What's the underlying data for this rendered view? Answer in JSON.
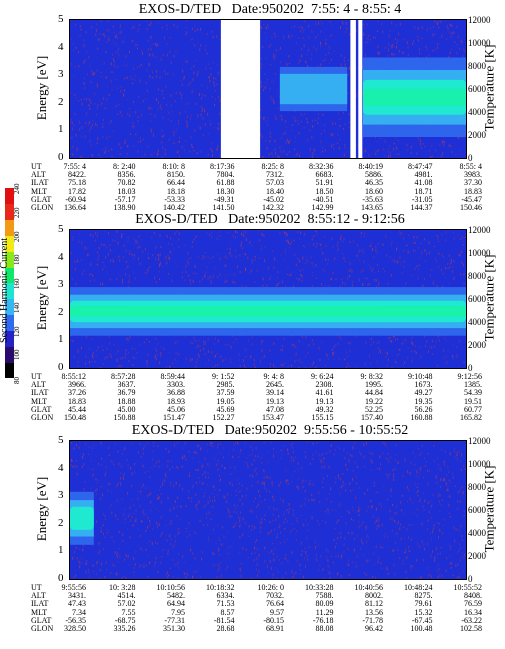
{
  "colors": {
    "background": "#1f2fd6",
    "noise": "#9a3a6e",
    "band_outer": "#2f6cf0",
    "band_mid": "#37b2f2",
    "band_core": "#1fe9d0",
    "band_peak": "#18f2a8",
    "gap": "#ffffff"
  },
  "colorbar": {
    "label": "Second Harmonic Current",
    "ticks": [
      "80",
      "100",
      "120",
      "140",
      "160",
      "180",
      "200",
      "220",
      "240"
    ],
    "colors": [
      "#000000",
      "#2a0a6a",
      "#2422c8",
      "#2f6cf0",
      "#36b6f2",
      "#1fe4cf",
      "#11e86a",
      "#8ae81c",
      "#f2ea14",
      "#f29a14",
      "#e82818",
      "#e01010"
    ]
  },
  "chart_data": [
    {
      "type": "heatmap",
      "title": "EXOS-D/TED   Date:950202  7:55: 4 - 8:55: 4",
      "ylabel": "Energy [eV]",
      "y2label": "Temperature [K]",
      "ylim": [
        0,
        5
      ],
      "y2lim": [
        0,
        12000
      ],
      "yticks": [
        "0",
        "1",
        "2",
        "3",
        "4",
        "5"
      ],
      "y2ticks": [
        "0",
        "2000",
        "4000",
        "6000",
        "8000",
        "10000",
        "12000"
      ],
      "time_range": [
        "7:55:4",
        "8:55:4"
      ],
      "data_gaps": [
        [
          0.381,
          0.48
        ],
        [
          0.708,
          0.722
        ],
        [
          0.728,
          0.738
        ]
      ],
      "features": [
        {
          "name": "band",
          "t_start": 0.53,
          "t_end": 0.7,
          "energy_center": 2.5,
          "energy_width": 1.0,
          "intensity": 0.45
        },
        {
          "name": "band",
          "t_start": 0.74,
          "t_end": 1.0,
          "energy_center": 2.2,
          "energy_width": 1.8,
          "intensity": 0.85
        }
      ],
      "ephemeris": {
        "labels": [
          "UT",
          "ALT",
          "ILAT",
          "MLT",
          "GLAT",
          "GLON"
        ],
        "columns": [
          [
            "7:55: 4",
            "8422.",
            "75.18",
            "17.82",
            "-60.94",
            "136.64"
          ],
          [
            "8: 2:40",
            "8356.",
            "70.82",
            "18.03",
            "-57.17",
            "138.90"
          ],
          [
            "8:10: 8",
            "8150.",
            "66.44",
            "18.18",
            "-53.33",
            "140.42"
          ],
          [
            "8:17:36",
            "7804.",
            "61.88",
            "18.30",
            "-49.31",
            "141.50"
          ],
          [
            "8:25: 8",
            "7312.",
            "57.03",
            "18.40",
            "-45.02",
            "142.32"
          ],
          [
            "8:32:36",
            "6683.",
            "51.91",
            "18.50",
            "-40.51",
            "142.99"
          ],
          [
            "8:40:19",
            "5886.",
            "46.35",
            "18.60",
            "-35.63",
            "143.65"
          ],
          [
            "8:47:47",
            "4981.",
            "41.08",
            "18.71",
            "-31.05",
            "144.37"
          ],
          [
            "8:55: 4",
            "3983.",
            "37.30",
            "18.83",
            "-45.47",
            "150.46"
          ]
        ]
      }
    },
    {
      "type": "heatmap",
      "title": "EXOS-D/TED   Date:950202  8:55:12 - 9:12:56",
      "ylabel": "Energy [eV]",
      "y2label": "Temperature [K]",
      "ylim": [
        0,
        5
      ],
      "y2lim": [
        0,
        12000
      ],
      "yticks": [
        "0",
        "1",
        "2",
        "3",
        "4",
        "5"
      ],
      "y2ticks": [
        "0",
        "2000",
        "4000",
        "6000",
        "8000",
        "10000",
        "12000"
      ],
      "time_range": [
        "8:55:12",
        "9:12:56"
      ],
      "data_gaps": [],
      "features": [
        {
          "name": "band",
          "t_start": 0.0,
          "t_end": 1.0,
          "energy_center": 2.05,
          "energy_width": 1.1,
          "intensity": 0.95
        }
      ],
      "ephemeris": {
        "labels": [
          "UT",
          "ALT",
          "ILAT",
          "MLT",
          "GLAT",
          "GLON"
        ],
        "columns": [
          [
            "8:55:12",
            "3966.",
            "37.26",
            "18.83",
            "45.44",
            "150.48"
          ],
          [
            "8:57:28",
            "3637.",
            "36.79",
            "18.88",
            "45.00",
            "150.88"
          ],
          [
            "8:59:44",
            "3303.",
            "36.88",
            "18.93",
            "45.06",
            "151.47"
          ],
          [
            "9: 1:52",
            "2985.",
            "37.59",
            "19.05",
            "45.69",
            "152.27"
          ],
          [
            "9: 4: 8",
            "2645.",
            "39.14",
            "19.13",
            "47.08",
            "153.47"
          ],
          [
            "9: 6:24",
            "2308.",
            "41.61",
            "19.13",
            "49.32",
            "155.15"
          ],
          [
            "9: 8:32",
            "1995.",
            "44.84",
            "19.22",
            "52.25",
            "157.40"
          ],
          [
            "9:10:48",
            "1673.",
            "49.27",
            "19.35",
            "56.26",
            "160.88"
          ],
          [
            "9:12:56",
            "1385.",
            "54.39",
            "19.51",
            "60.77",
            "165.82"
          ]
        ]
      }
    },
    {
      "type": "heatmap",
      "title": "EXOS-D/TED   Date:950202  9:55:56 - 10:55:52",
      "ylabel": "Energy [eV]",
      "y2label": "Temperature [K]",
      "ylim": [
        0,
        5
      ],
      "y2lim": [
        0,
        12000
      ],
      "yticks": [
        "0",
        "1",
        "2",
        "3",
        "4",
        "5"
      ],
      "y2ticks": [
        "0",
        "2000",
        "4000",
        "6000",
        "8000",
        "10000",
        "12000"
      ],
      "time_range": [
        "9:55:56",
        "10:55:52"
      ],
      "data_gaps": [],
      "features": [
        {
          "name": "band",
          "t_start": 0.0,
          "t_end": 0.06,
          "energy_center": 2.2,
          "energy_width": 1.2,
          "intensity": 0.6
        }
      ],
      "ephemeris": {
        "labels": [
          "UT",
          "ALT",
          "ILAT",
          "MLT",
          "GLAT",
          "GLON"
        ],
        "columns": [
          [
            "9:55:56",
            "3431.",
            "47.43",
            "7.34",
            "-56.35",
            "328.50"
          ],
          [
            "10: 3:28",
            "4514.",
            "57.02",
            "7.55",
            "-68.75",
            "335.26"
          ],
          [
            "10:10:56",
            "5482.",
            "64.94",
            "7.95",
            "-77.31",
            "351.30"
          ],
          [
            "10:18:32",
            "6334.",
            "71.53",
            "8.57",
            "-81.54",
            "28.68"
          ],
          [
            "10:26: 0",
            "7032.",
            "76.64",
            "9.57",
            "-80.15",
            "68.91"
          ],
          [
            "10:33:28",
            "7588.",
            "80.09",
            "11.29",
            "-76.18",
            "88.08"
          ],
          [
            "10:40:56",
            "8002.",
            "81.12",
            "13.56",
            "-71.78",
            "96.42"
          ],
          [
            "10:48:24",
            "8275.",
            "79.61",
            "15.32",
            "-67.45",
            "100.48"
          ],
          [
            "10:55:52",
            "8408.",
            "76.59",
            "16.34",
            "-63.22",
            "102.58"
          ]
        ]
      }
    }
  ]
}
